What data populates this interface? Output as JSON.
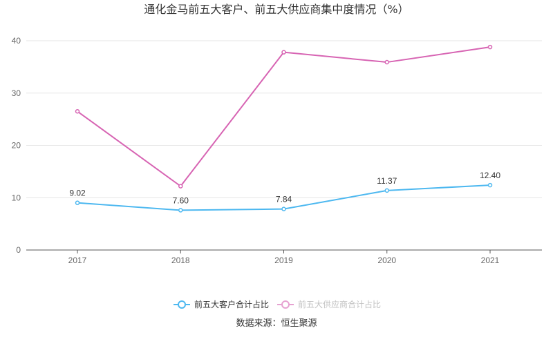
{
  "chart_data": {
    "type": "line",
    "title": "通化金马前五大客户、前五大供应商集中度情况（%）",
    "categories": [
      "2017",
      "2018",
      "2019",
      "2020",
      "2021"
    ],
    "ylim": [
      0,
      40
    ],
    "yticks": [
      "0",
      "10",
      "20",
      "30",
      "40"
    ],
    "grid": true,
    "legend_position": "bottom",
    "series": [
      {
        "name": "前五大客户合计占比",
        "color": "#4db8f0",
        "values": [
          9.02,
          7.6,
          7.84,
          11.37,
          12.4
        ],
        "labels": [
          "9.02",
          "7.60",
          "7.84",
          "11.37",
          "12.40"
        ]
      },
      {
        "name": "前五大供应商合计占比",
        "color": "#d764b3",
        "values": [
          26.5,
          12.2,
          37.8,
          35.9,
          38.8
        ]
      }
    ],
    "source": "数据来源：恒生聚源"
  }
}
